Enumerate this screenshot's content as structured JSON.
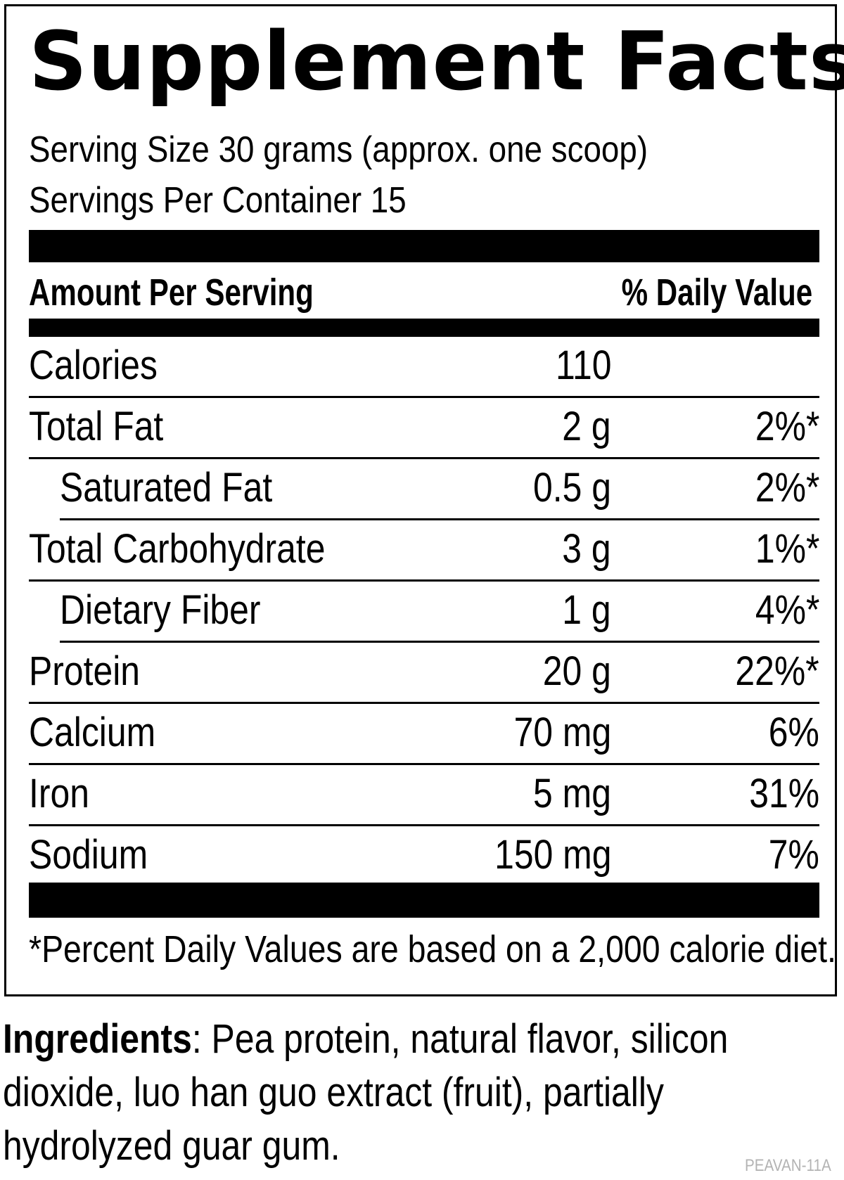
{
  "label": {
    "title": "Supplement Facts",
    "serving_size": "Serving Size 30 grams (approx. one scoop)",
    "servings_per_container": "Servings Per Container 15",
    "header_left": "Amount Per Serving",
    "header_right": "% Daily Value",
    "rows": [
      {
        "name": "Calories",
        "amount": "110",
        "dv": ""
      },
      {
        "name": "Total Fat",
        "amount": "2 g",
        "dv": "2%*"
      },
      {
        "name": "Saturated Fat",
        "amount": "0.5 g",
        "dv": "2%*"
      },
      {
        "name": "Total Carbohydrate",
        "amount": "3 g",
        "dv": "1%*"
      },
      {
        "name": "Dietary Fiber",
        "amount": "1 g",
        "dv": "4%*"
      },
      {
        "name": "Protein",
        "amount": "20 g",
        "dv": "22%*"
      },
      {
        "name": "Calcium",
        "amount": "70 mg",
        "dv": "6%"
      },
      {
        "name": "Iron",
        "amount": "5 mg",
        "dv": "31%"
      },
      {
        "name": "Sodium",
        "amount": "150 mg",
        "dv": "7%"
      }
    ],
    "footnote": "*Percent Daily Values are based on a 2,000 calorie diet."
  },
  "ingredients": {
    "label": "Ingredients",
    "text": ": Pea protein, natural flavor, silicon dioxide, luo han guo extract (fruit), partially hydrolyzed guar gum."
  },
  "product_code": "PEAVAN-11A"
}
